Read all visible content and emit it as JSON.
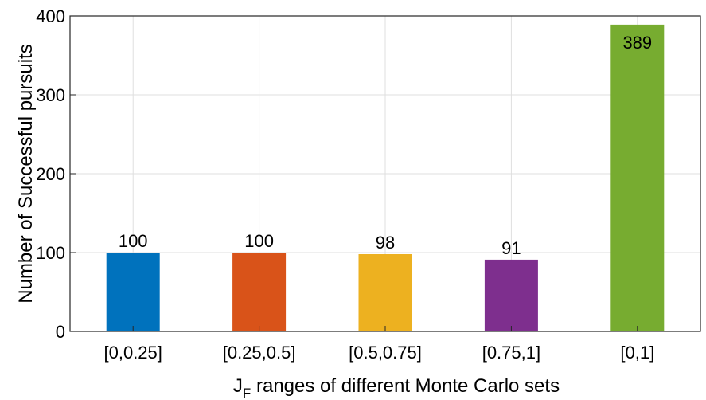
{
  "chart_data": {
    "type": "bar",
    "categories": [
      "[0,0.25]",
      "[0.25,0.5]",
      "[0.5,0.75]",
      "[0.75,1]",
      "[0,1]"
    ],
    "values": [
      100,
      100,
      98,
      91,
      389
    ],
    "data_labels": [
      "100",
      "100",
      "98",
      "91",
      "389"
    ],
    "colors": [
      "#0072BD",
      "#D95319",
      "#EDB120",
      "#7E2F8E",
      "#77AC30"
    ],
    "ylabel": "Number of Successful pursuits",
    "xlabel_main": "J",
    "xlabel_sub": "F",
    "xlabel_rest": " ranges of different Monte Carlo sets",
    "ylim": [
      0,
      400
    ],
    "yticks": [
      0,
      100,
      200,
      300,
      400
    ],
    "ytick_labels": [
      "0",
      "100",
      "200",
      "300",
      "400"
    ],
    "grid": true,
    "legend": "none"
  }
}
